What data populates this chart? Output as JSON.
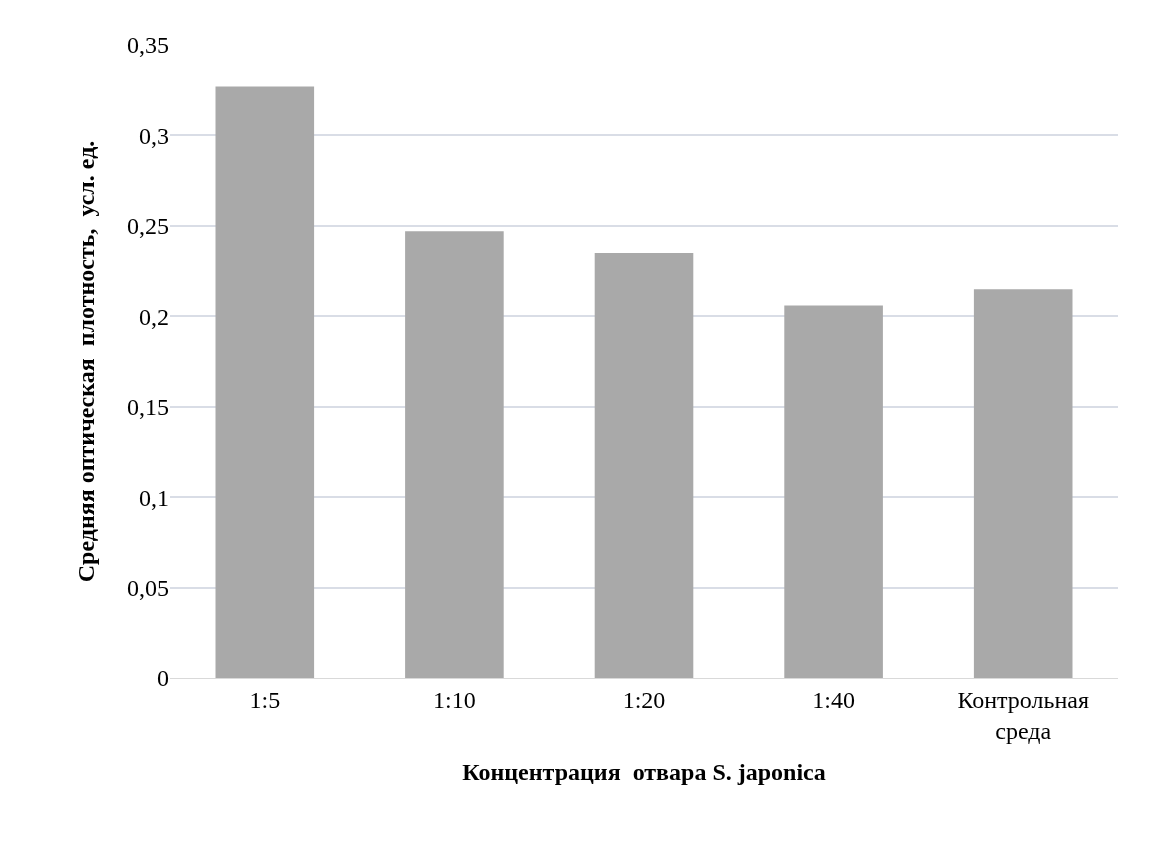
{
  "chart_data": {
    "type": "bar",
    "xlabel": "Концентрация  отвара S. japonica",
    "ylabel": "Средняя оптическая  плотность,  усл. ед.",
    "categories": [
      "1:5",
      "1:10",
      "1:20",
      "1:40",
      "Контрольная\nсреда"
    ],
    "values": [
      0.327,
      0.247,
      0.235,
      0.206,
      0.215
    ],
    "color": "#a9a9a9",
    "ylim": [
      0,
      0.35
    ],
    "yticks": [
      {
        "value": 0,
        "label": "0"
      },
      {
        "value": 0.05,
        "label": "0,05"
      },
      {
        "value": 0.1,
        "label": "0,1"
      },
      {
        "value": 0.15,
        "label": "0,15"
      },
      {
        "value": 0.2,
        "label": "0,2"
      },
      {
        "value": 0.25,
        "label": "0,25"
      },
      {
        "value": 0.3,
        "label": "0,3"
      },
      {
        "value": 0.35,
        "label": "0,35"
      }
    ],
    "grid": "y"
  }
}
